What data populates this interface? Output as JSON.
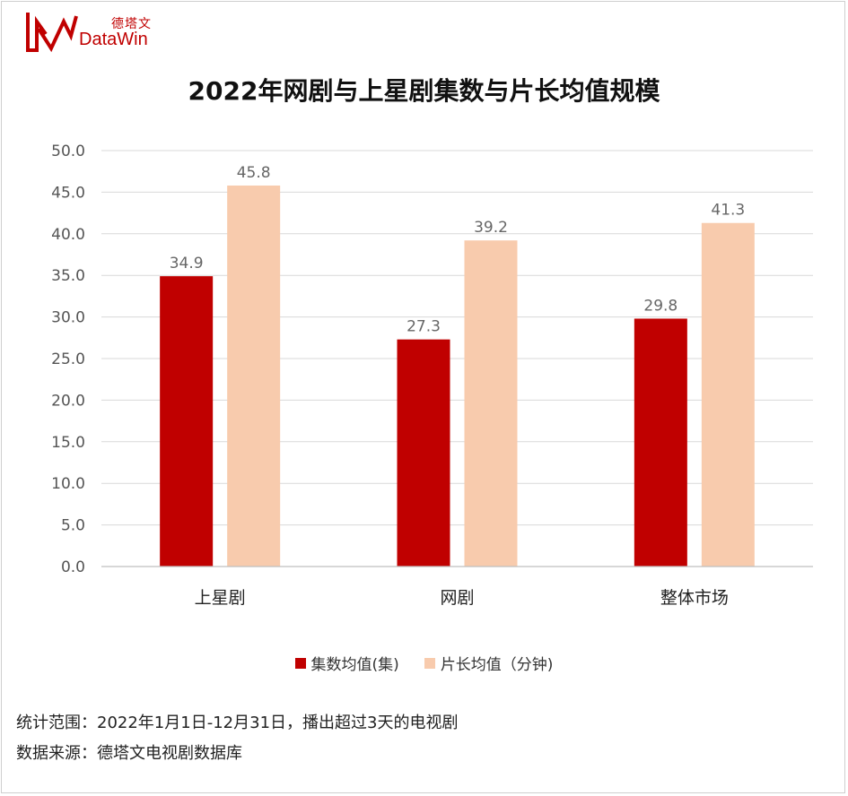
{
  "brand": {
    "name_cn": "德塔文",
    "name_en": "DataWin",
    "logo_icon": "datawin-logo-icon"
  },
  "colors": {
    "series1": "#c00000",
    "series2": "#f8cbad",
    "grid": "#d9d9d9",
    "axis_text": "#555555",
    "label_text": "#666666"
  },
  "chart_data": {
    "type": "bar",
    "title": "2022年网剧与上星剧集数与片长均值规模",
    "categories": [
      "上星剧",
      "网剧",
      "整体市场"
    ],
    "series": [
      {
        "name": "集数均值(集)",
        "values": [
          34.9,
          27.3,
          29.8
        ]
      },
      {
        "name": "片长均值（分钟)",
        "values": [
          45.8,
          39.2,
          41.3
        ]
      }
    ],
    "ylim": [
      0,
      50
    ],
    "yticks": [
      "0.0",
      "5.0",
      "10.0",
      "15.0",
      "20.0",
      "25.0",
      "30.0",
      "35.0",
      "40.0",
      "45.0",
      "50.0"
    ],
    "grid": true,
    "legend_position": "bottom",
    "xlabel": "",
    "ylabel": ""
  },
  "footnotes": {
    "scope": "统计范围：2022年1月1日-12月31日，播出超过3天的电视剧",
    "source": "数据来源：德塔文电视剧数据库"
  }
}
